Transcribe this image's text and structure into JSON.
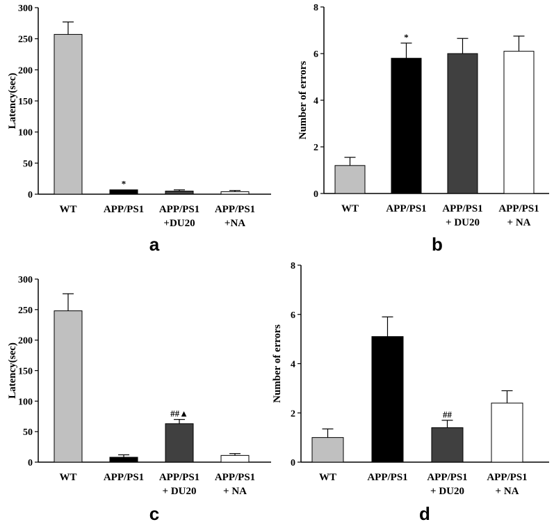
{
  "chart_data": [
    {
      "id": "a",
      "panel_label": "a",
      "type": "bar",
      "ylabel": "Latency(sec)",
      "xlabel": "",
      "ylim": [
        0,
        300
      ],
      "yticks": [
        0,
        50,
        100,
        150,
        200,
        250,
        300
      ],
      "categories": [
        [
          "WT"
        ],
        [
          "APP/PS1"
        ],
        [
          "APP/PS1",
          "+DU20"
        ],
        [
          "APP/PS1",
          "+NA"
        ]
      ],
      "values": [
        257,
        7,
        5,
        4
      ],
      "errors": [
        20,
        0,
        2,
        2
      ],
      "fills": [
        "#c0c0c0",
        "#000000",
        "#404040",
        "#ffffff"
      ],
      "annotations": [
        "",
        "*",
        "",
        ""
      ]
    },
    {
      "id": "b",
      "panel_label": "b",
      "type": "bar",
      "ylabel": "Number of errors",
      "xlabel": "",
      "ylim": [
        0,
        8
      ],
      "yticks": [
        0,
        2,
        4,
        6,
        8
      ],
      "categories": [
        [
          "WT"
        ],
        [
          "APP/PS1"
        ],
        [
          "APP/PS1",
          "+ DU20"
        ],
        [
          "APP/PS1",
          "+ NA"
        ]
      ],
      "values": [
        1.2,
        5.8,
        6.0,
        6.1
      ],
      "errors": [
        0.35,
        0.65,
        0.65,
        0.65
      ],
      "fills": [
        "#c0c0c0",
        "#000000",
        "#404040",
        "#ffffff"
      ],
      "annotations": [
        "",
        "*",
        "",
        ""
      ]
    },
    {
      "id": "c",
      "panel_label": "c",
      "type": "bar",
      "ylabel": "Latency(sec)",
      "xlabel": "",
      "ylim": [
        0,
        300
      ],
      "yticks": [
        0,
        50,
        100,
        150,
        200,
        250,
        300
      ],
      "categories": [
        [
          "WT"
        ],
        [
          "APP/PS1"
        ],
        [
          "APP/PS1",
          "+ DU20"
        ],
        [
          "APP/PS1",
          "+ NA"
        ]
      ],
      "values": [
        248,
        8,
        63,
        11
      ],
      "errors": [
        28,
        4,
        7,
        3
      ],
      "fills": [
        "#c0c0c0",
        "#000000",
        "#404040",
        "#ffffff"
      ],
      "annotations": [
        "",
        "",
        "##▲",
        ""
      ]
    },
    {
      "id": "d",
      "panel_label": "d",
      "type": "bar",
      "ylabel": "Number of errors",
      "xlabel": "",
      "ylim": [
        0,
        8
      ],
      "yticks": [
        0,
        2,
        4,
        6,
        8
      ],
      "categories": [
        [
          "WT"
        ],
        [
          "APP/PS1"
        ],
        [
          "APP/PS1",
          "+ DU20"
        ],
        [
          "APP/PS1",
          "+ NA"
        ]
      ],
      "values": [
        1.0,
        5.1,
        1.4,
        2.4
      ],
      "errors": [
        0.35,
        0.8,
        0.3,
        0.5
      ],
      "fills": [
        "#c0c0c0",
        "#000000",
        "#404040",
        "#ffffff"
      ],
      "annotations": [
        "",
        "",
        "##",
        ""
      ]
    }
  ]
}
